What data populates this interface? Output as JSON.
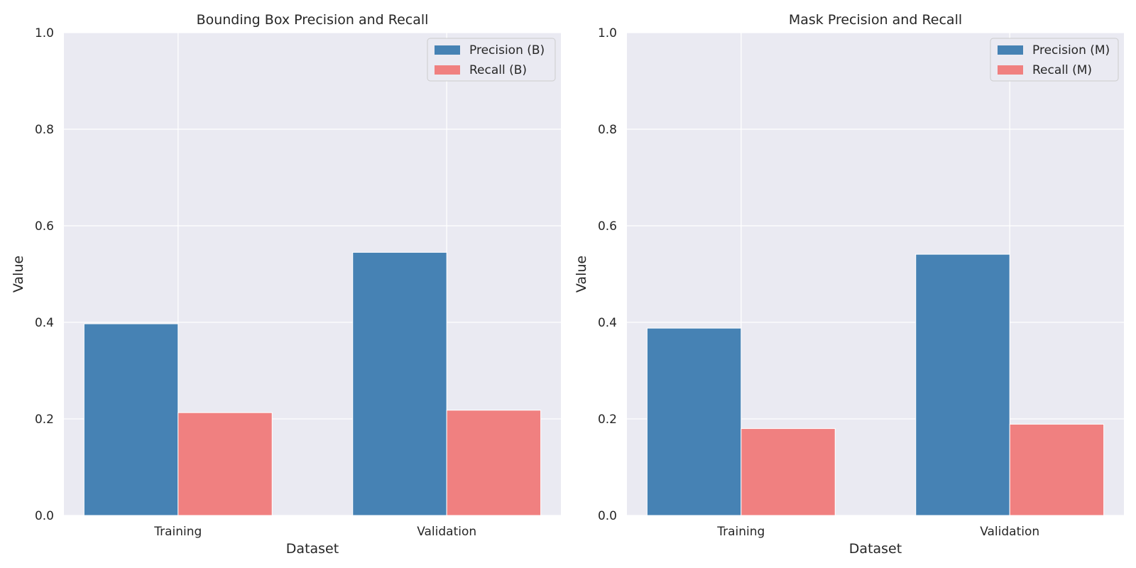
{
  "chart_data": [
    {
      "type": "bar",
      "title": "Bounding Box Precision and Recall",
      "xlabel": "Dataset",
      "ylabel": "Value",
      "categories": [
        "Training",
        "Validation"
      ],
      "series": [
        {
          "name": "Precision (B)",
          "values": [
            0.397,
            0.545
          ],
          "color": "#4682b4"
        },
        {
          "name": "Recall (B)",
          "values": [
            0.213,
            0.218
          ],
          "color": "#f08080"
        }
      ],
      "ylim": [
        0,
        1.0
      ],
      "yticks": [
        "0.0",
        "0.2",
        "0.4",
        "0.6",
        "0.8",
        "1.0"
      ],
      "grid": true,
      "legend_position": "top-right"
    },
    {
      "type": "bar",
      "title": "Mask Precision and Recall",
      "xlabel": "Dataset",
      "ylabel": "Value",
      "categories": [
        "Training",
        "Validation"
      ],
      "series": [
        {
          "name": "Precision (M)",
          "values": [
            0.388,
            0.541
          ],
          "color": "#4682b4"
        },
        {
          "name": "Recall (M)",
          "values": [
            0.18,
            0.189
          ],
          "color": "#f08080"
        }
      ],
      "ylim": [
        0,
        1.0
      ],
      "yticks": [
        "0.0",
        "0.2",
        "0.4",
        "0.6",
        "0.8",
        "1.0"
      ],
      "grid": true,
      "legend_position": "top-right"
    }
  ]
}
